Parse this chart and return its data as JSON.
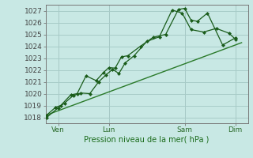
{
  "xlabel": "Pression niveau de la mer( hPa )",
  "bg_color": "#c8e8e4",
  "grid_color": "#a8ccc8",
  "line_color": "#1a5c1a",
  "trend_color": "#2a7a2a",
  "ylim": [
    1017.5,
    1027.5
  ],
  "yticks": [
    1018,
    1019,
    1020,
    1021,
    1022,
    1023,
    1024,
    1025,
    1026,
    1027
  ],
  "xtick_labels": [
    "Ven",
    "Lun",
    "Sam",
    "Dim"
  ],
  "xtick_positions": [
    1,
    5,
    11,
    15
  ],
  "xlim": [
    0,
    16
  ],
  "line1_x": [
    0.1,
    0.8,
    1.2,
    2.0,
    2.5,
    3.2,
    4.0,
    4.6,
    5.0,
    5.5,
    6.0,
    6.5,
    7.5,
    8.5,
    9.5,
    10.5,
    11.0,
    11.5,
    12.0,
    12.8,
    14.0,
    15.0
  ],
  "line1_y": [
    1018.2,
    1018.85,
    1019.0,
    1019.9,
    1020.0,
    1021.5,
    1021.1,
    1021.8,
    1022.2,
    1022.15,
    1023.1,
    1023.2,
    1024.0,
    1024.75,
    1025.0,
    1027.1,
    1027.2,
    1026.2,
    1026.1,
    1026.8,
    1024.1,
    1024.7
  ],
  "line2_x": [
    0.1,
    1.0,
    1.5,
    2.2,
    2.8,
    3.5,
    4.2,
    4.8,
    5.3,
    5.8,
    6.3,
    7.0,
    8.0,
    9.0,
    10.0,
    10.8,
    11.5,
    12.5,
    13.5,
    14.5,
    15.0
  ],
  "line2_y": [
    1018.0,
    1018.8,
    1019.2,
    1019.85,
    1020.05,
    1020.0,
    1021.0,
    1021.6,
    1022.05,
    1021.7,
    1022.6,
    1023.2,
    1024.4,
    1024.8,
    1027.05,
    1026.8,
    1025.4,
    1025.2,
    1025.5,
    1025.1,
    1024.6
  ],
  "trend_x": [
    0.1,
    15.5
  ],
  "trend_y": [
    1018.2,
    1024.3
  ],
  "vlines": [
    1,
    5,
    11,
    15
  ]
}
